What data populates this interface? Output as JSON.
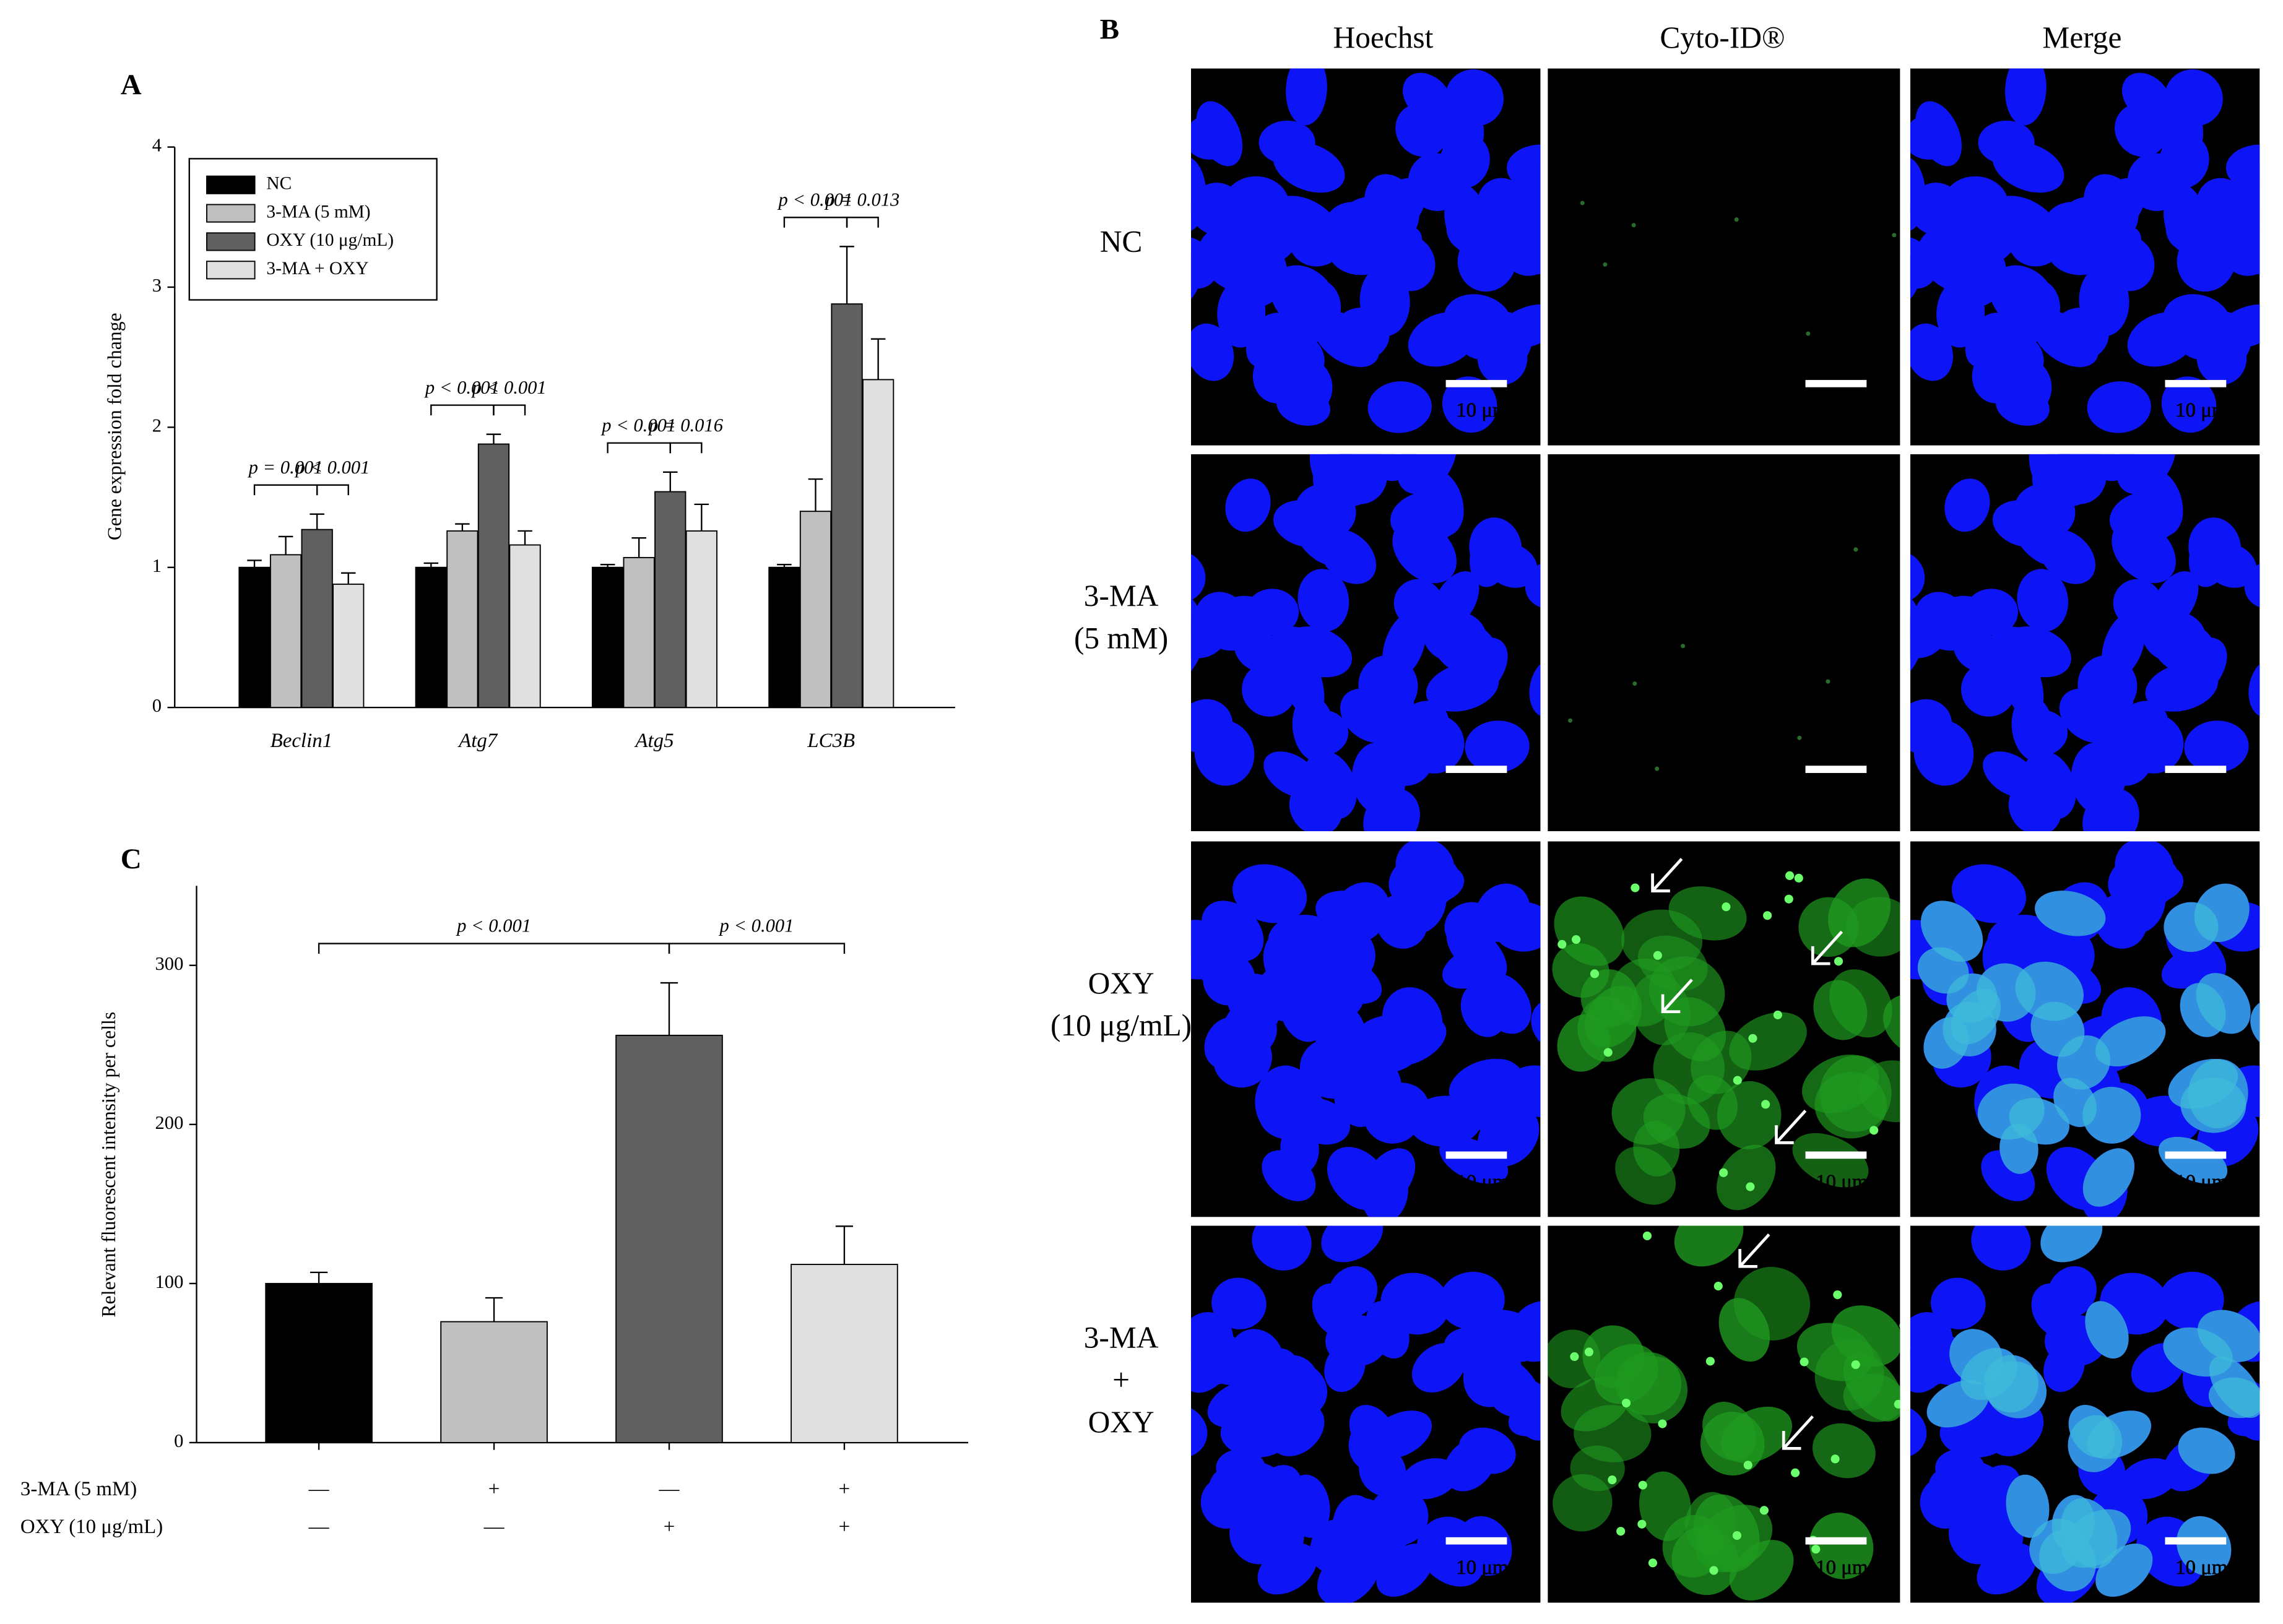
{
  "chart_data": [
    {
      "type": "grouped-bar",
      "title": "A",
      "y_label": "Gene expression fold change",
      "categories": [
        "Beclin1",
        "Atg7",
        "Atg5",
        "LC3B"
      ],
      "series": [
        {
          "name": "NC",
          "color": "#000000",
          "values": [
            1.0,
            1.0,
            1.0,
            1.0
          ],
          "errors": [
            0.05,
            0.03,
            0.02,
            0.02
          ]
        },
        {
          "name": "3-MA (5 mM)",
          "color": "#c0c0c0",
          "values": [
            1.09,
            1.26,
            1.07,
            1.4
          ],
          "errors": [
            0.13,
            0.05,
            0.14,
            0.23
          ]
        },
        {
          "name": "OXY (10 μg/mL)",
          "color": "#606060",
          "values": [
            1.27,
            1.88,
            1.54,
            2.88
          ],
          "errors": [
            0.11,
            0.07,
            0.14,
            0.41
          ]
        },
        {
          "name": "3-MA + OXY",
          "color": "#e0e0e0",
          "values": [
            0.88,
            1.16,
            1.26,
            2.34
          ],
          "errors": [
            0.08,
            0.1,
            0.19,
            0.29
          ]
        }
      ],
      "annotations": [
        [
          "p = 0.001",
          "p < 0.001"
        ],
        [
          "p < 0.001",
          "p < 0.001"
        ],
        [
          "p < 0.001",
          "p = 0.016"
        ],
        [
          "p < 0.001",
          "p = 0.013"
        ]
      ],
      "ylim": [
        0,
        4
      ],
      "yticks": [
        0,
        1,
        2,
        3,
        4
      ],
      "legend": "upper-left"
    },
    {
      "type": "bar",
      "title": "C",
      "y_label": "Relevant fluorescent intensity per cells",
      "categories": [
        null,
        null,
        null,
        null
      ],
      "values": [
        100,
        76,
        256,
        112
      ],
      "errors": [
        7,
        15,
        33,
        24
      ],
      "colors": [
        "#000000",
        "#c0c0c0",
        "#606060",
        "#e0e0e0"
      ],
      "annotations": [
        "p < 0.001",
        "p < 0.001"
      ],
      "treatments": [
        {
          "name": "3-MA (5 mM)",
          "marks": [
            "—",
            "+",
            "—",
            "+"
          ]
        },
        {
          "name": "OXY (10 μg/mL)",
          "marks": [
            "—",
            "—",
            "+",
            "+"
          ]
        }
      ],
      "ylim": [
        0,
        350
      ],
      "yticks": [
        0,
        100,
        200,
        300
      ]
    }
  ],
  "panel_b": {
    "title": "B",
    "columns": [
      "Hoechst",
      "Cyto-ID®",
      "Merge"
    ],
    "rows": [
      [
        "NC"
      ],
      [
        "3-MA",
        "(5 mM)"
      ],
      [
        "OXY",
        "(10 μg/mL)"
      ],
      [
        "3-MA",
        "+",
        "OXY"
      ]
    ],
    "scale_bar": "10 μm"
  }
}
